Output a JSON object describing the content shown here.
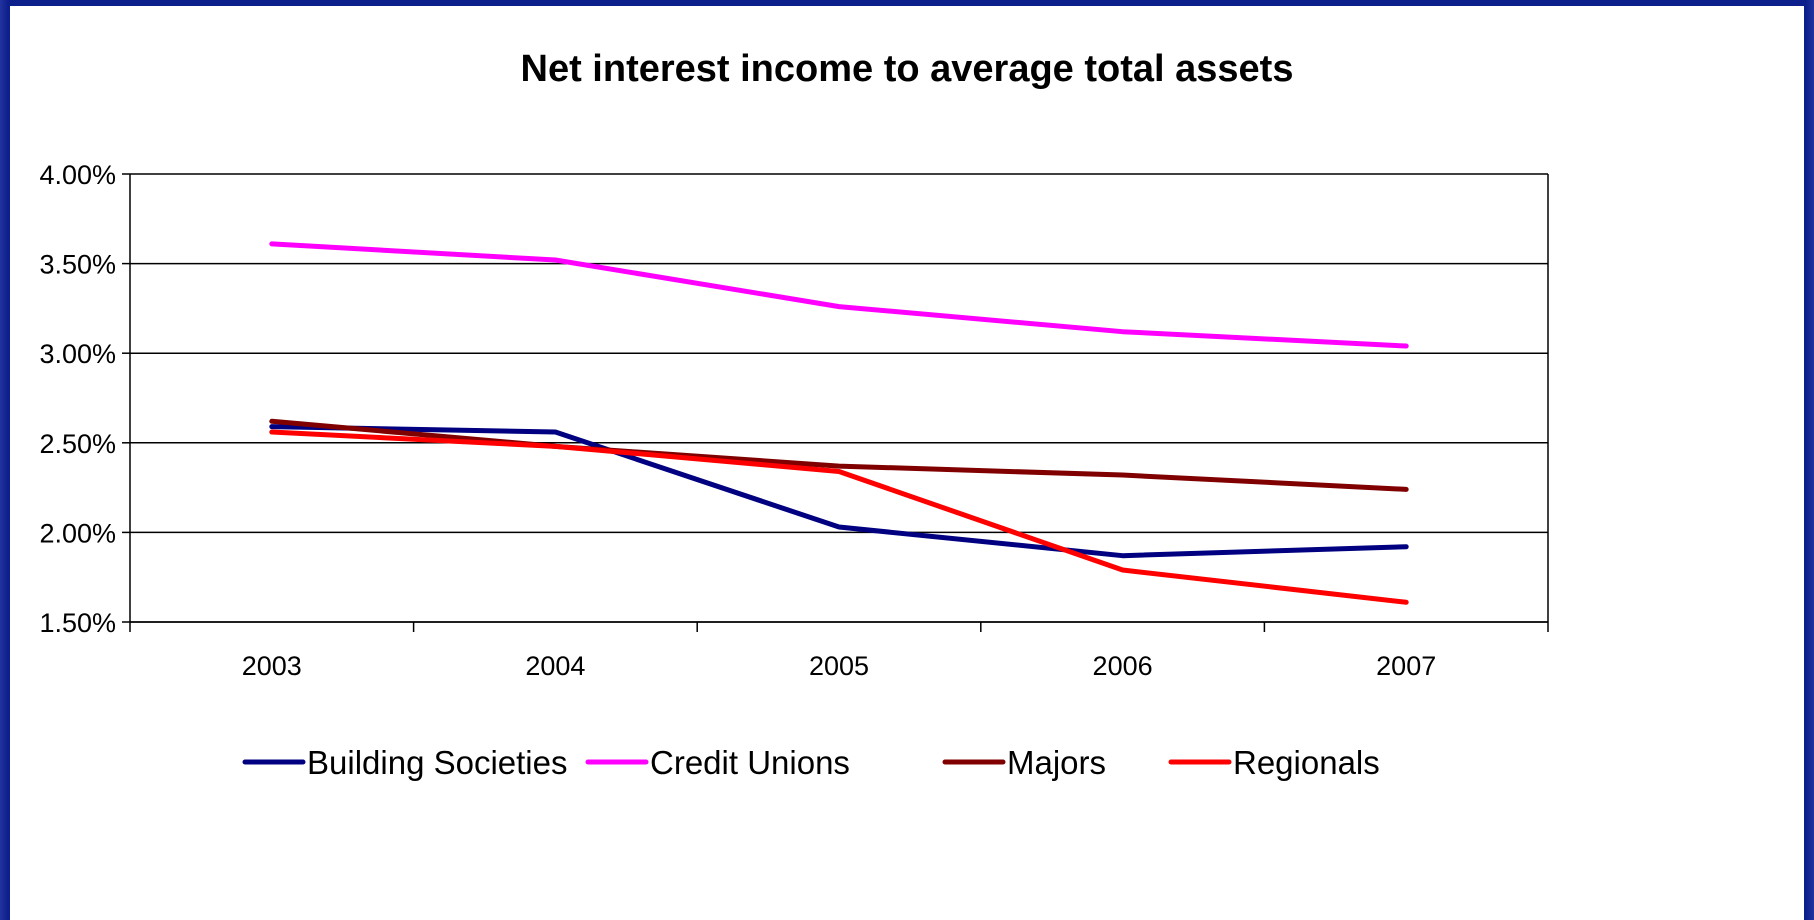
{
  "chart_data": {
    "type": "line",
    "title": "Net interest income to average total assets",
    "xlabel": "",
    "ylabel": "",
    "categories": [
      "2003",
      "2004",
      "2005",
      "2006",
      "2007"
    ],
    "ylim": [
      0.015,
      0.04
    ],
    "yticks": [
      {
        "value": 0.04,
        "label": "4.00%"
      },
      {
        "value": 0.035,
        "label": "3.50%"
      },
      {
        "value": 0.03,
        "label": "3.00%"
      },
      {
        "value": 0.025,
        "label": "2.50%"
      },
      {
        "value": 0.02,
        "label": "2.00%"
      },
      {
        "value": 0.015,
        "label": "1.50%"
      }
    ],
    "grid": true,
    "legend_position": "bottom",
    "series": [
      {
        "name": "Building Societies",
        "color": "#000080",
        "values": [
          0.0259,
          0.0256,
          0.0203,
          0.0187,
          0.0192
        ]
      },
      {
        "name": "Credit Unions",
        "color": "#ff00ff",
        "values": [
          0.0361,
          0.0352,
          0.0326,
          0.0312,
          0.0304
        ]
      },
      {
        "name": "Majors",
        "color": "#800000",
        "values": [
          0.0262,
          0.0248,
          0.0237,
          0.0232,
          0.0224
        ]
      },
      {
        "name": "Regionals",
        "color": "#ff0000",
        "values": [
          0.0256,
          0.0248,
          0.0234,
          0.0179,
          0.0161
        ]
      }
    ]
  }
}
